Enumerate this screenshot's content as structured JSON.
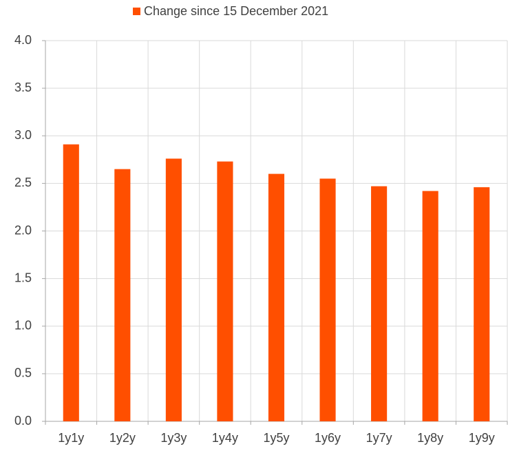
{
  "chart_data": {
    "type": "bar",
    "categories": [
      "1y1y",
      "1y2y",
      "1y3y",
      "1y4y",
      "1y5y",
      "1y6y",
      "1y7y",
      "1y8y",
      "1y9y"
    ],
    "series": [
      {
        "name": "Change since 15 December 2021",
        "color": "#ff4f00",
        "values": [
          2.91,
          2.65,
          2.76,
          2.73,
          2.6,
          2.55,
          2.47,
          2.42,
          2.46
        ]
      }
    ],
    "ylim": [
      0,
      4
    ],
    "yticks": [
      {
        "value": 0,
        "label": "0.0"
      },
      0.5,
      {
        "value": 1,
        "label": "1.0"
      },
      1.5,
      {
        "value": 2,
        "label": "2.0"
      },
      2.5,
      {
        "value": 3,
        "label": "3.0"
      },
      3.5,
      {
        "value": 4,
        "label": "4.0"
      }
    ],
    "grid": true,
    "legend": "top"
  }
}
